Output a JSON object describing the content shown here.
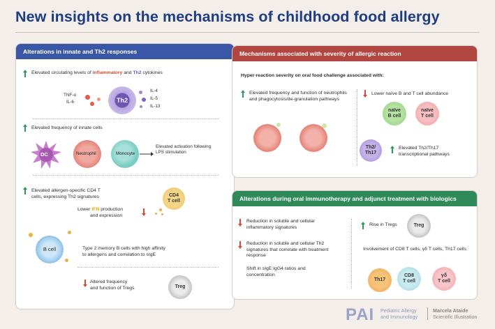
{
  "title": "New insights on the mechanisms of childhood food allergy",
  "colors": {
    "blue_header": "#3a56a6",
    "red_header": "#b0463f",
    "green_header": "#2f8a5a",
    "up_arrow": "#2e9a5a",
    "down_arrow": "#cf4a36"
  },
  "left": {
    "header": "Alterations in innate and Th2 responses",
    "s1": {
      "pre": "Elevated circulating levels of ",
      "inflammatory": "inflammatory",
      "and": " and ",
      "th2": "Th2",
      "post": " cytokines",
      "tnf": "TNF-α",
      "il6": "IL-6",
      "cell": "Th2",
      "il4": "IL-4",
      "il5": "IL-5",
      "il13": "IL-13"
    },
    "s2": {
      "text": "Elevated frequency of innate cells",
      "dc": "DC",
      "neutrophil": "Neutrophil",
      "monocyte": "Monocyte",
      "activation": "Elevated activation following LPS stimulation"
    },
    "s3": {
      "line1": "Elevated allergen-specific CD4 T",
      "line2": "cells, expressing Th2 signatures",
      "cd4": "CD4",
      "tcell": "T cell",
      "lower": "Lower ",
      "ifn": "IFN",
      "production": " production",
      "expression": "and expression"
    },
    "s4": {
      "bcell": "B cell",
      "line1": "Type 2 memory B cells with high affinity",
      "line2": "to allergens and correlation to sIgE"
    },
    "s5": {
      "line1": "Altered frequency",
      "line2": "and function of Tregs",
      "treg": "Treg"
    }
  },
  "topright": {
    "header": "Mechanisms associated with severity of allergic reaction",
    "subtitle": "Hyper-reaction severity on oral food challenge associated with:",
    "neutro_text": "Elevated frequency and function of neutrophils and phagocytosis/de-granulation pathways",
    "lower_text": "Lower naïve B and T cell abundance",
    "naive_b1": "naïve",
    "naive_b2": "B cell",
    "naive_t1": "naïve",
    "naive_t2": "T cell",
    "th_cell1": "Th2/",
    "th_cell2": "Th17",
    "th_text1": "Elevated Th2/Th17",
    "th_text2": "transcriptional pathways"
  },
  "bottomright": {
    "header": "Alterations during oral immunotherapy and adjunct treatment with biologics",
    "r1": "Reduction in soluble and cellular inflammatory signatures",
    "r2": "Reduction in soluble and cellular Th2 signatures that correlate with treatment response",
    "r3": "Shift in sIgE:IgG4 ratios and concentration",
    "tregs": "Rise in Tregs",
    "treg": "Treg",
    "involve": "Involvement of CD8 T cells, γδ T cells, Th17 cells",
    "th17": "Th17",
    "cd8_1": "CD8",
    "cd8_2": "T cell",
    "gd_1": "γδ",
    "gd_2": "T cell"
  },
  "footer": {
    "pai": "PAI",
    "journal1": "Pediatric Allergy",
    "journal2": "and Immunology",
    "artist1": "Marcela Ataide",
    "artist2": "Scientific Illustration"
  }
}
